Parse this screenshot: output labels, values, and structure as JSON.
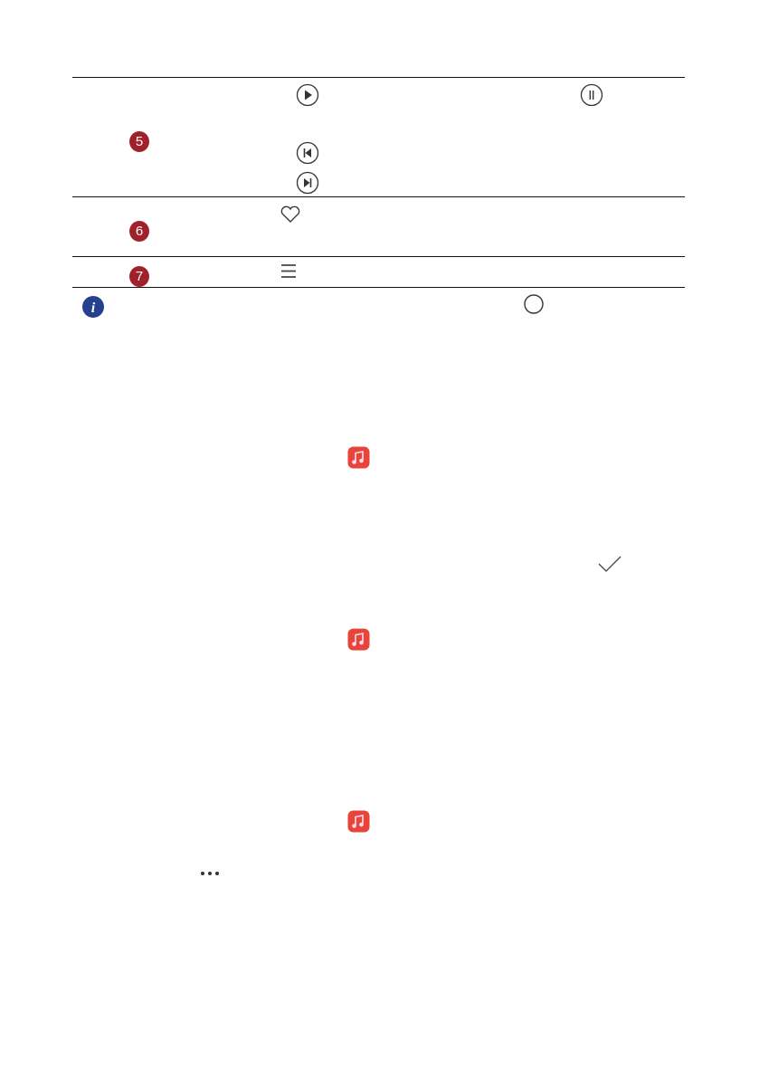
{
  "table": {
    "rows": [
      {
        "badge": "5",
        "icons": [
          "play-icon",
          "pause-icon",
          "previous-icon",
          "next-icon"
        ]
      },
      {
        "badge": "6",
        "icons": [
          "heart-icon"
        ]
      },
      {
        "badge": "7",
        "icons": [
          "menu-icon"
        ]
      }
    ]
  },
  "note": {
    "icons": [
      "info-icon",
      "home-circle-icon"
    ]
  },
  "steps": {
    "icons": [
      "music-app-icon",
      "checkmark-icon",
      "music-app-icon",
      "music-app-icon",
      "more-dots-icon"
    ]
  },
  "colors": {
    "badge": "#a0212a",
    "info": "#23418f",
    "music_app": "#e8453a"
  }
}
